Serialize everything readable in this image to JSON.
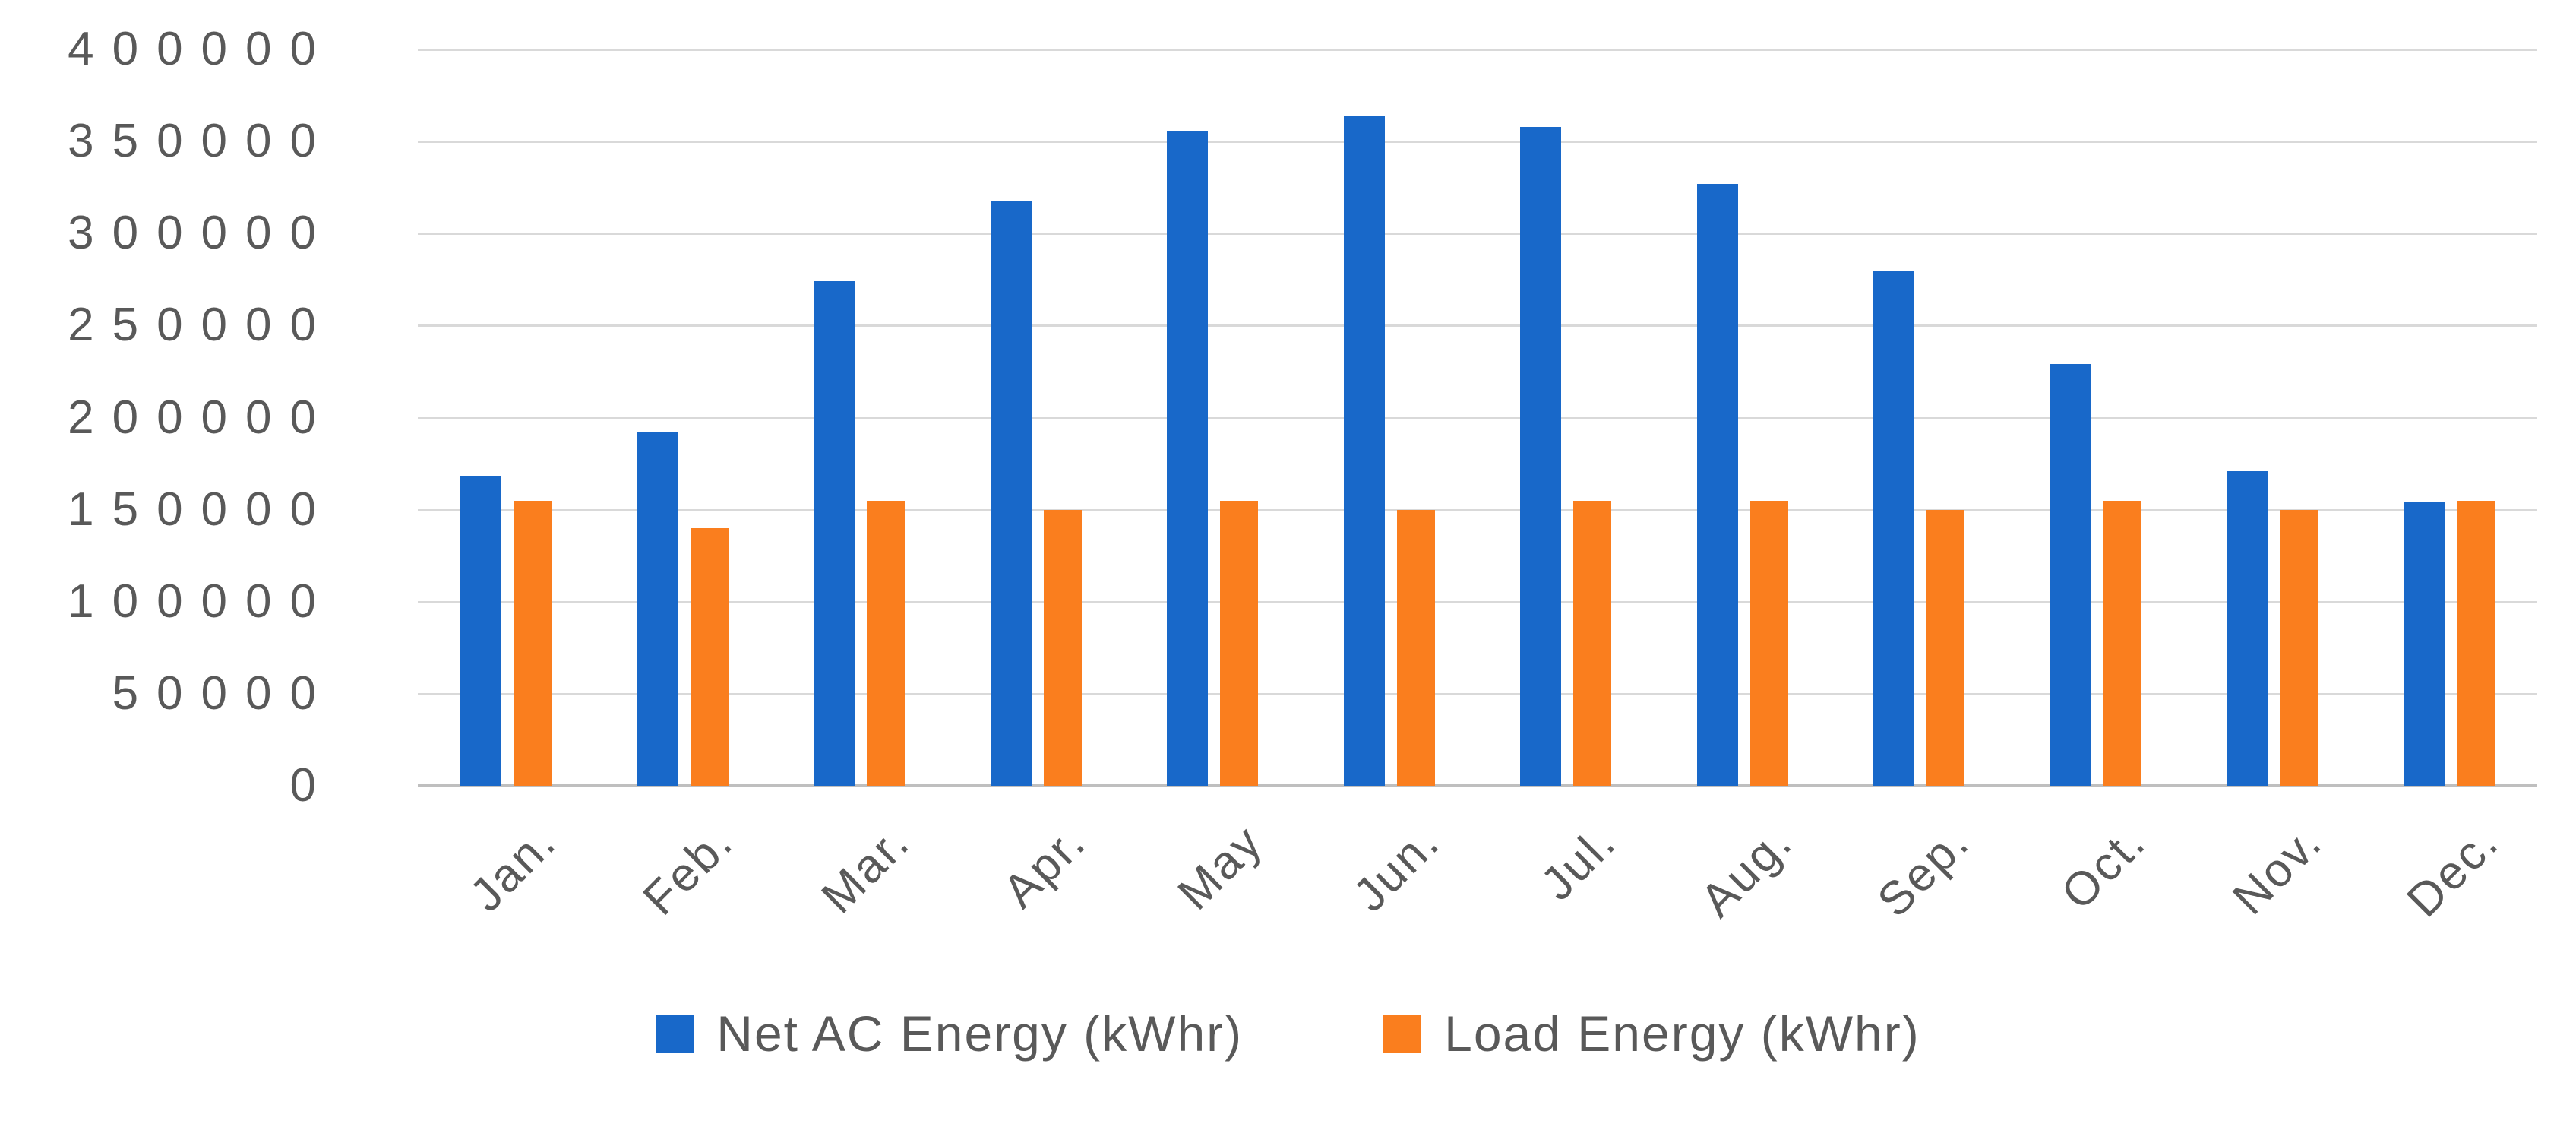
{
  "chart_data": {
    "type": "bar",
    "title": "",
    "xlabel": "",
    "ylabel": "",
    "categories": [
      "Jan.",
      "Feb.",
      "Mar.",
      "Apr.",
      "May",
      "Jun.",
      "Jul.",
      "Aug.",
      "Sep.",
      "Oct.",
      "Nov.",
      "Dec."
    ],
    "series": [
      {
        "name": "Net AC Energy (kWhr)",
        "color": "#1868c9",
        "values": [
          168000,
          192000,
          274000,
          318000,
          356000,
          364000,
          358000,
          327000,
          280000,
          229000,
          171000,
          154000
        ]
      },
      {
        "name": "Load Energy (kWhr)",
        "color": "#fa7e1e",
        "values": [
          155000,
          140000,
          155000,
          150000,
          155000,
          150000,
          155000,
          155000,
          150000,
          155000,
          150000,
          155000
        ]
      }
    ],
    "ylim": [
      0,
      400000
    ],
    "ytick_step": 50000,
    "yticks": [
      0,
      50000,
      100000,
      150000,
      200000,
      250000,
      300000,
      350000,
      400000
    ],
    "grid": true,
    "legend_position": "bottom",
    "gridline_color": "#d9d9d9",
    "axis_line_color": "#bfbfbf",
    "text_color": "#595959"
  }
}
